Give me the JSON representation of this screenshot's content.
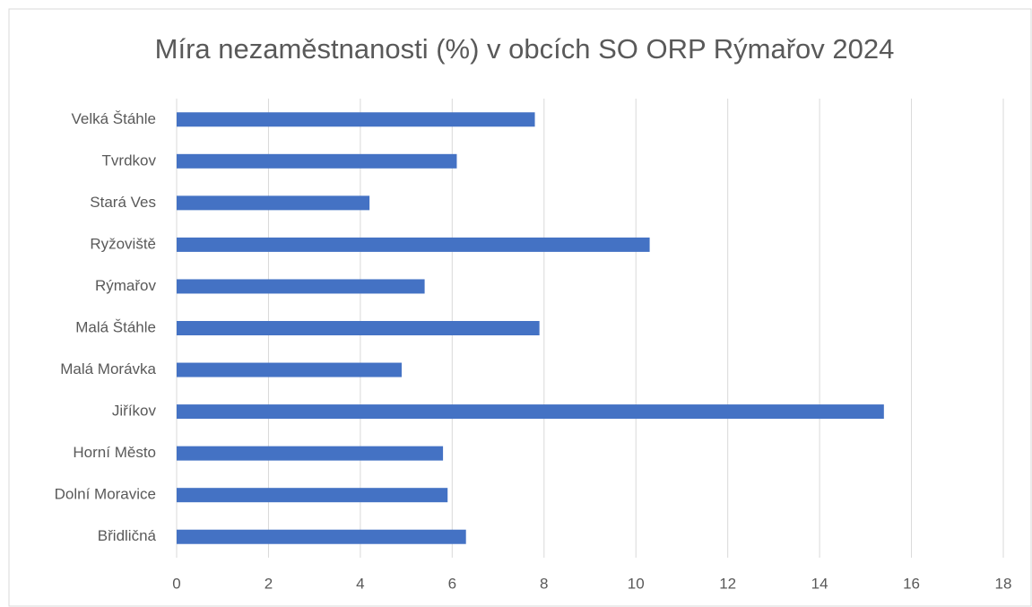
{
  "chart_data": {
    "type": "bar",
    "orientation": "horizontal",
    "title": "Míra nezaměstnanosti (%) v obcích SO ORP Rýmařov 2024",
    "categories": [
      "Velká Štáhle",
      "Tvrdkov",
      "Stará Ves",
      "Ryžoviště",
      "Rýmařov",
      "Malá Štáhle",
      "Malá Morávka",
      "Jiříkov",
      "Horní Město",
      "Dolní Moravice",
      "Břidličná"
    ],
    "values": [
      7.8,
      6.1,
      4.2,
      10.3,
      5.4,
      7.9,
      4.9,
      15.4,
      5.8,
      5.9,
      6.3
    ],
    "color": "#4472c4",
    "xlim": [
      0,
      18
    ],
    "xticks": [
      0,
      2,
      4,
      6,
      8,
      10,
      12,
      14,
      16,
      18
    ],
    "grid": true
  }
}
